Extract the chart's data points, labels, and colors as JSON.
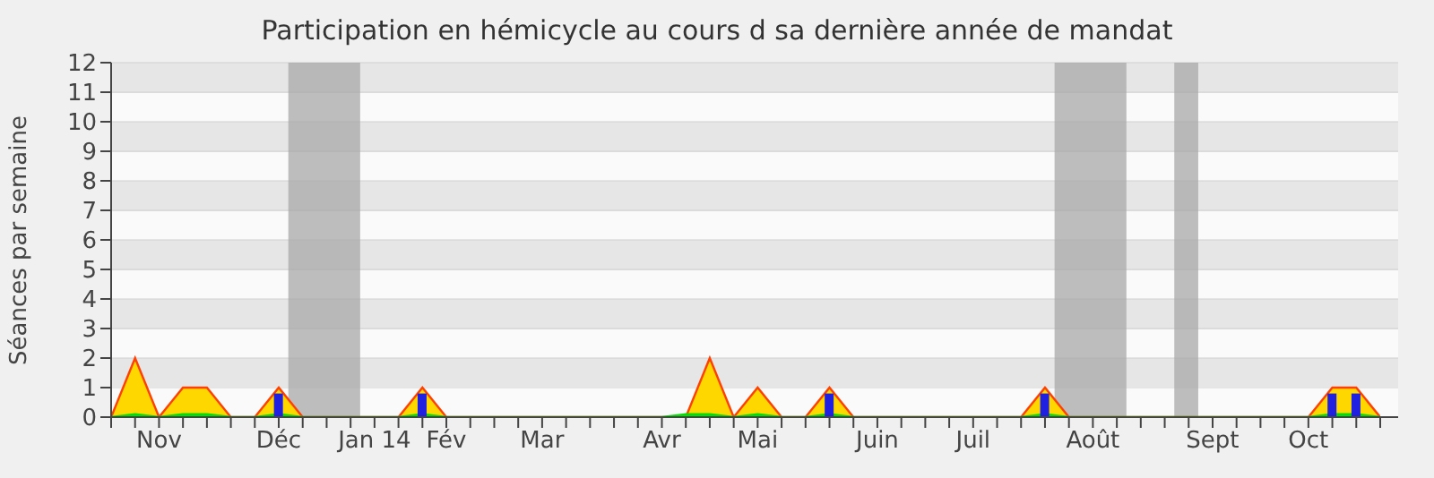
{
  "chart_data": {
    "type": "area",
    "title": "Participation en hémicycle au cours d sa dernière année de mandat",
    "ylabel": "Séances par semaine",
    "categories": [
      null,
      null,
      "Nov",
      null,
      null,
      null,
      null,
      "Déc",
      null,
      null,
      null,
      "Jan 14",
      null,
      null,
      "Fév",
      null,
      null,
      null,
      "Mar",
      null,
      null,
      null,
      null,
      "Avr",
      null,
      null,
      null,
      "Mai",
      null,
      null,
      null,
      null,
      "Juin",
      null,
      null,
      null,
      "Juil",
      null,
      null,
      null,
      null,
      "Août",
      null,
      null,
      null,
      null,
      "Sept",
      null,
      null,
      null,
      "Oct",
      null,
      null,
      null
    ],
    "series": [
      {
        "color": "#ffd700",
        "values": [
          0,
          2,
          0,
          1,
          1,
          0,
          0,
          1,
          0,
          0,
          0,
          0,
          0,
          1,
          0,
          0,
          0,
          0,
          0,
          0,
          0,
          0,
          0,
          0,
          0,
          2,
          0,
          1,
          0,
          0,
          1,
          0,
          0,
          0,
          0,
          0,
          0,
          0,
          0,
          1,
          0,
          0,
          0,
          0,
          0,
          0,
          0,
          0,
          0,
          0,
          0,
          1,
          1,
          0
        ]
      },
      {
        "color": "#00e000",
        "values": [
          0,
          0.1,
          0,
          0.1,
          0.1,
          0,
          0,
          0.1,
          0,
          0,
          0,
          0,
          0,
          0.1,
          0,
          0,
          0,
          0,
          0,
          0,
          0,
          0,
          0,
          0,
          0.1,
          0.1,
          0,
          0.1,
          0,
          0,
          0.1,
          0,
          0,
          0,
          0,
          0,
          0,
          0,
          0,
          0.1,
          0,
          0,
          0,
          0,
          0,
          0,
          0,
          0,
          0,
          0,
          0,
          0.1,
          0.1,
          0
        ]
      },
      {
        "type": "bar",
        "color": "#2020e0",
        "values": [
          null,
          null,
          null,
          null,
          null,
          null,
          null,
          0.8,
          null,
          null,
          null,
          null,
          null,
          0.8,
          null,
          null,
          null,
          null,
          null,
          null,
          null,
          null,
          null,
          null,
          null,
          null,
          null,
          null,
          null,
          null,
          0.8,
          null,
          null,
          null,
          null,
          null,
          null,
          null,
          null,
          0.8,
          null,
          null,
          null,
          null,
          null,
          null,
          null,
          null,
          null,
          null,
          null,
          0.8,
          0.8,
          null
        ]
      }
    ],
    "ylim": [
      0,
      12
    ],
    "yticks": [
      0,
      1,
      2,
      3,
      4,
      5,
      6,
      7,
      8,
      9,
      10,
      11,
      12
    ],
    "grid": "y"
  }
}
